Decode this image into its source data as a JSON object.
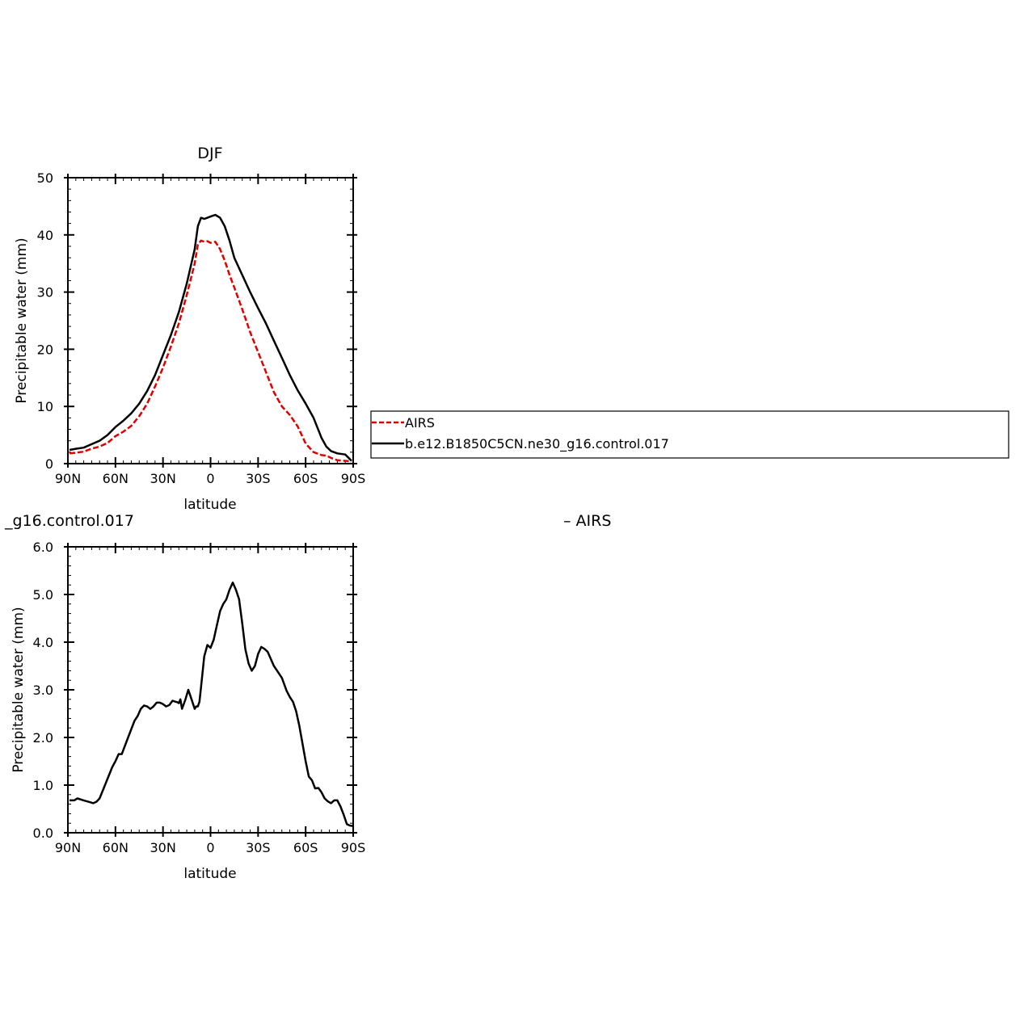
{
  "chart_data": [
    {
      "type": "line",
      "title": "DJF",
      "xlabel": "latitude",
      "ylabel": "Precipitable water (mm)",
      "xlim": [
        90,
        -90
      ],
      "ylim": [
        0,
        50
      ],
      "xticks": [
        {
          "v": 90,
          "label": "90N"
        },
        {
          "v": 60,
          "label": "60N"
        },
        {
          "v": 30,
          "label": "30N"
        },
        {
          "v": 0,
          "label": "0"
        },
        {
          "v": -30,
          "label": "30S"
        },
        {
          "v": -60,
          "label": "60S"
        },
        {
          "v": -90,
          "label": "90S"
        }
      ],
      "yticks": [
        {
          "v": 0,
          "label": "0"
        },
        {
          "v": 10,
          "label": "10"
        },
        {
          "v": 20,
          "label": "20"
        },
        {
          "v": 30,
          "label": "30"
        },
        {
          "v": 40,
          "label": "40"
        },
        {
          "v": 50,
          "label": "50"
        }
      ],
      "series": [
        {
          "name": "AIRS",
          "color": "#e00000",
          "dash": true,
          "x": [
            89,
            85,
            80,
            75,
            70,
            65,
            60,
            55,
            50,
            45,
            40,
            35,
            30,
            25,
            20,
            15,
            10,
            8,
            6,
            4,
            2,
            0,
            -3,
            -6,
            -9,
            -12,
            -15,
            -20,
            -25,
            -30,
            -35,
            -40,
            -45,
            -50,
            -55,
            -60,
            -65,
            -70,
            -73,
            -76,
            -80,
            -85,
            -89
          ],
          "y": [
            1.8,
            1.9,
            2.1,
            2.6,
            3.0,
            3.6,
            4.8,
            5.6,
            6.6,
            8.3,
            10.5,
            13.5,
            16.8,
            20.5,
            24.5,
            29.5,
            35.0,
            38.3,
            39.0,
            38.8,
            38.9,
            38.6,
            38.8,
            37.5,
            35.5,
            33.0,
            30.8,
            27.0,
            23.0,
            19.5,
            16.0,
            12.5,
            10.0,
            8.5,
            6.5,
            3.5,
            2.0,
            1.5,
            1.4,
            1.0,
            0.6,
            0.5,
            0.4
          ]
        },
        {
          "name": "b.e12.B1850C5CN.ne30_g16.control.017",
          "color": "#000000",
          "dash": false,
          "x": [
            89,
            85,
            80,
            75,
            70,
            65,
            60,
            55,
            50,
            45,
            40,
            35,
            30,
            25,
            20,
            15,
            10,
            8,
            6,
            4,
            2,
            0,
            -3,
            -6,
            -9,
            -12,
            -15,
            -20,
            -25,
            -30,
            -35,
            -40,
            -45,
            -50,
            -55,
            -60,
            -65,
            -70,
            -73,
            -76,
            -80,
            -85,
            -89
          ],
          "y": [
            2.4,
            2.6,
            2.8,
            3.4,
            4.0,
            5.0,
            6.4,
            7.5,
            8.8,
            10.5,
            12.7,
            15.5,
            19.0,
            22.5,
            26.5,
            31.5,
            37.5,
            41.5,
            43.0,
            42.8,
            43.0,
            43.2,
            43.5,
            43.0,
            41.5,
            39.0,
            36.0,
            33.0,
            30.0,
            27.2,
            24.5,
            21.5,
            18.5,
            15.5,
            12.8,
            10.5,
            8.0,
            4.5,
            3.0,
            2.2,
            1.8,
            1.6,
            0.5
          ]
        }
      ],
      "legend": {
        "items": [
          {
            "label": "AIRS",
            "color": "#e00000",
            "dash": true
          },
          {
            "label": "b.e12.B1850C5CN.ne30_g16.control.017",
            "color": "#000000",
            "dash": false
          }
        ]
      }
    },
    {
      "type": "line",
      "title_left": "_g16.control.017",
      "title_right": "– AIRS",
      "xlabel": "latitude",
      "ylabel": "Precipitable water (mm)",
      "xlim": [
        90,
        -90
      ],
      "ylim": [
        0,
        6
      ],
      "xticks": [
        {
          "v": 90,
          "label": "90N"
        },
        {
          "v": 60,
          "label": "60N"
        },
        {
          "v": 30,
          "label": "30N"
        },
        {
          "v": 0,
          "label": "0"
        },
        {
          "v": -30,
          "label": "30S"
        },
        {
          "v": -60,
          "label": "60S"
        },
        {
          "v": -90,
          "label": "90S"
        }
      ],
      "yticks": [
        {
          "v": 0,
          "label": "0.0"
        },
        {
          "v": 1,
          "label": "1.0"
        },
        {
          "v": 2,
          "label": "2.0"
        },
        {
          "v": 3,
          "label": "3.0"
        },
        {
          "v": 4,
          "label": "4.0"
        },
        {
          "v": 5,
          "label": "5.0"
        },
        {
          "v": 6,
          "label": "6.0"
        }
      ],
      "series": [
        {
          "color": "#000000",
          "dash": false,
          "x": [
            89,
            86,
            84,
            80,
            76,
            74,
            72,
            70,
            66,
            62,
            60,
            58,
            56,
            52,
            48,
            46,
            44,
            42,
            40,
            38,
            36,
            34,
            32,
            30,
            28,
            26,
            24,
            22,
            21,
            20,
            19,
            18,
            16,
            14,
            12,
            10,
            9,
            8,
            7,
            6,
            4,
            2,
            0,
            -2,
            -4,
            -6,
            -8,
            -10,
            -12,
            -14,
            -16,
            -18,
            -20,
            -22,
            -24,
            -26,
            -28,
            -30,
            -32,
            -34,
            -36,
            -40,
            -42,
            -45,
            -48,
            -50,
            -52,
            -54,
            -56,
            -58,
            -60,
            -62,
            -64,
            -66,
            -68,
            -70,
            -72,
            -74,
            -76,
            -78,
            -80,
            -82,
            -84,
            -86,
            -88,
            -90
          ],
          "y": [
            0.68,
            0.68,
            0.72,
            0.68,
            0.64,
            0.62,
            0.65,
            0.72,
            1.05,
            1.38,
            1.5,
            1.65,
            1.65,
            2.0,
            2.35,
            2.45,
            2.6,
            2.67,
            2.65,
            2.6,
            2.65,
            2.73,
            2.73,
            2.7,
            2.65,
            2.68,
            2.77,
            2.75,
            2.74,
            2.72,
            2.8,
            2.6,
            2.78,
            3.0,
            2.8,
            2.6,
            2.65,
            2.65,
            2.75,
            3.05,
            3.7,
            3.94,
            3.88,
            4.05,
            4.35,
            4.65,
            4.8,
            4.9,
            5.1,
            5.25,
            5.1,
            4.9,
            4.4,
            3.85,
            3.55,
            3.4,
            3.5,
            3.75,
            3.9,
            3.86,
            3.8,
            3.5,
            3.4,
            3.25,
            2.98,
            2.85,
            2.75,
            2.55,
            2.25,
            1.88,
            1.5,
            1.18,
            1.1,
            0.93,
            0.94,
            0.85,
            0.72,
            0.66,
            0.62,
            0.68,
            0.68,
            0.55,
            0.38,
            0.18,
            0.15,
            0.14
          ]
        }
      ]
    }
  ]
}
